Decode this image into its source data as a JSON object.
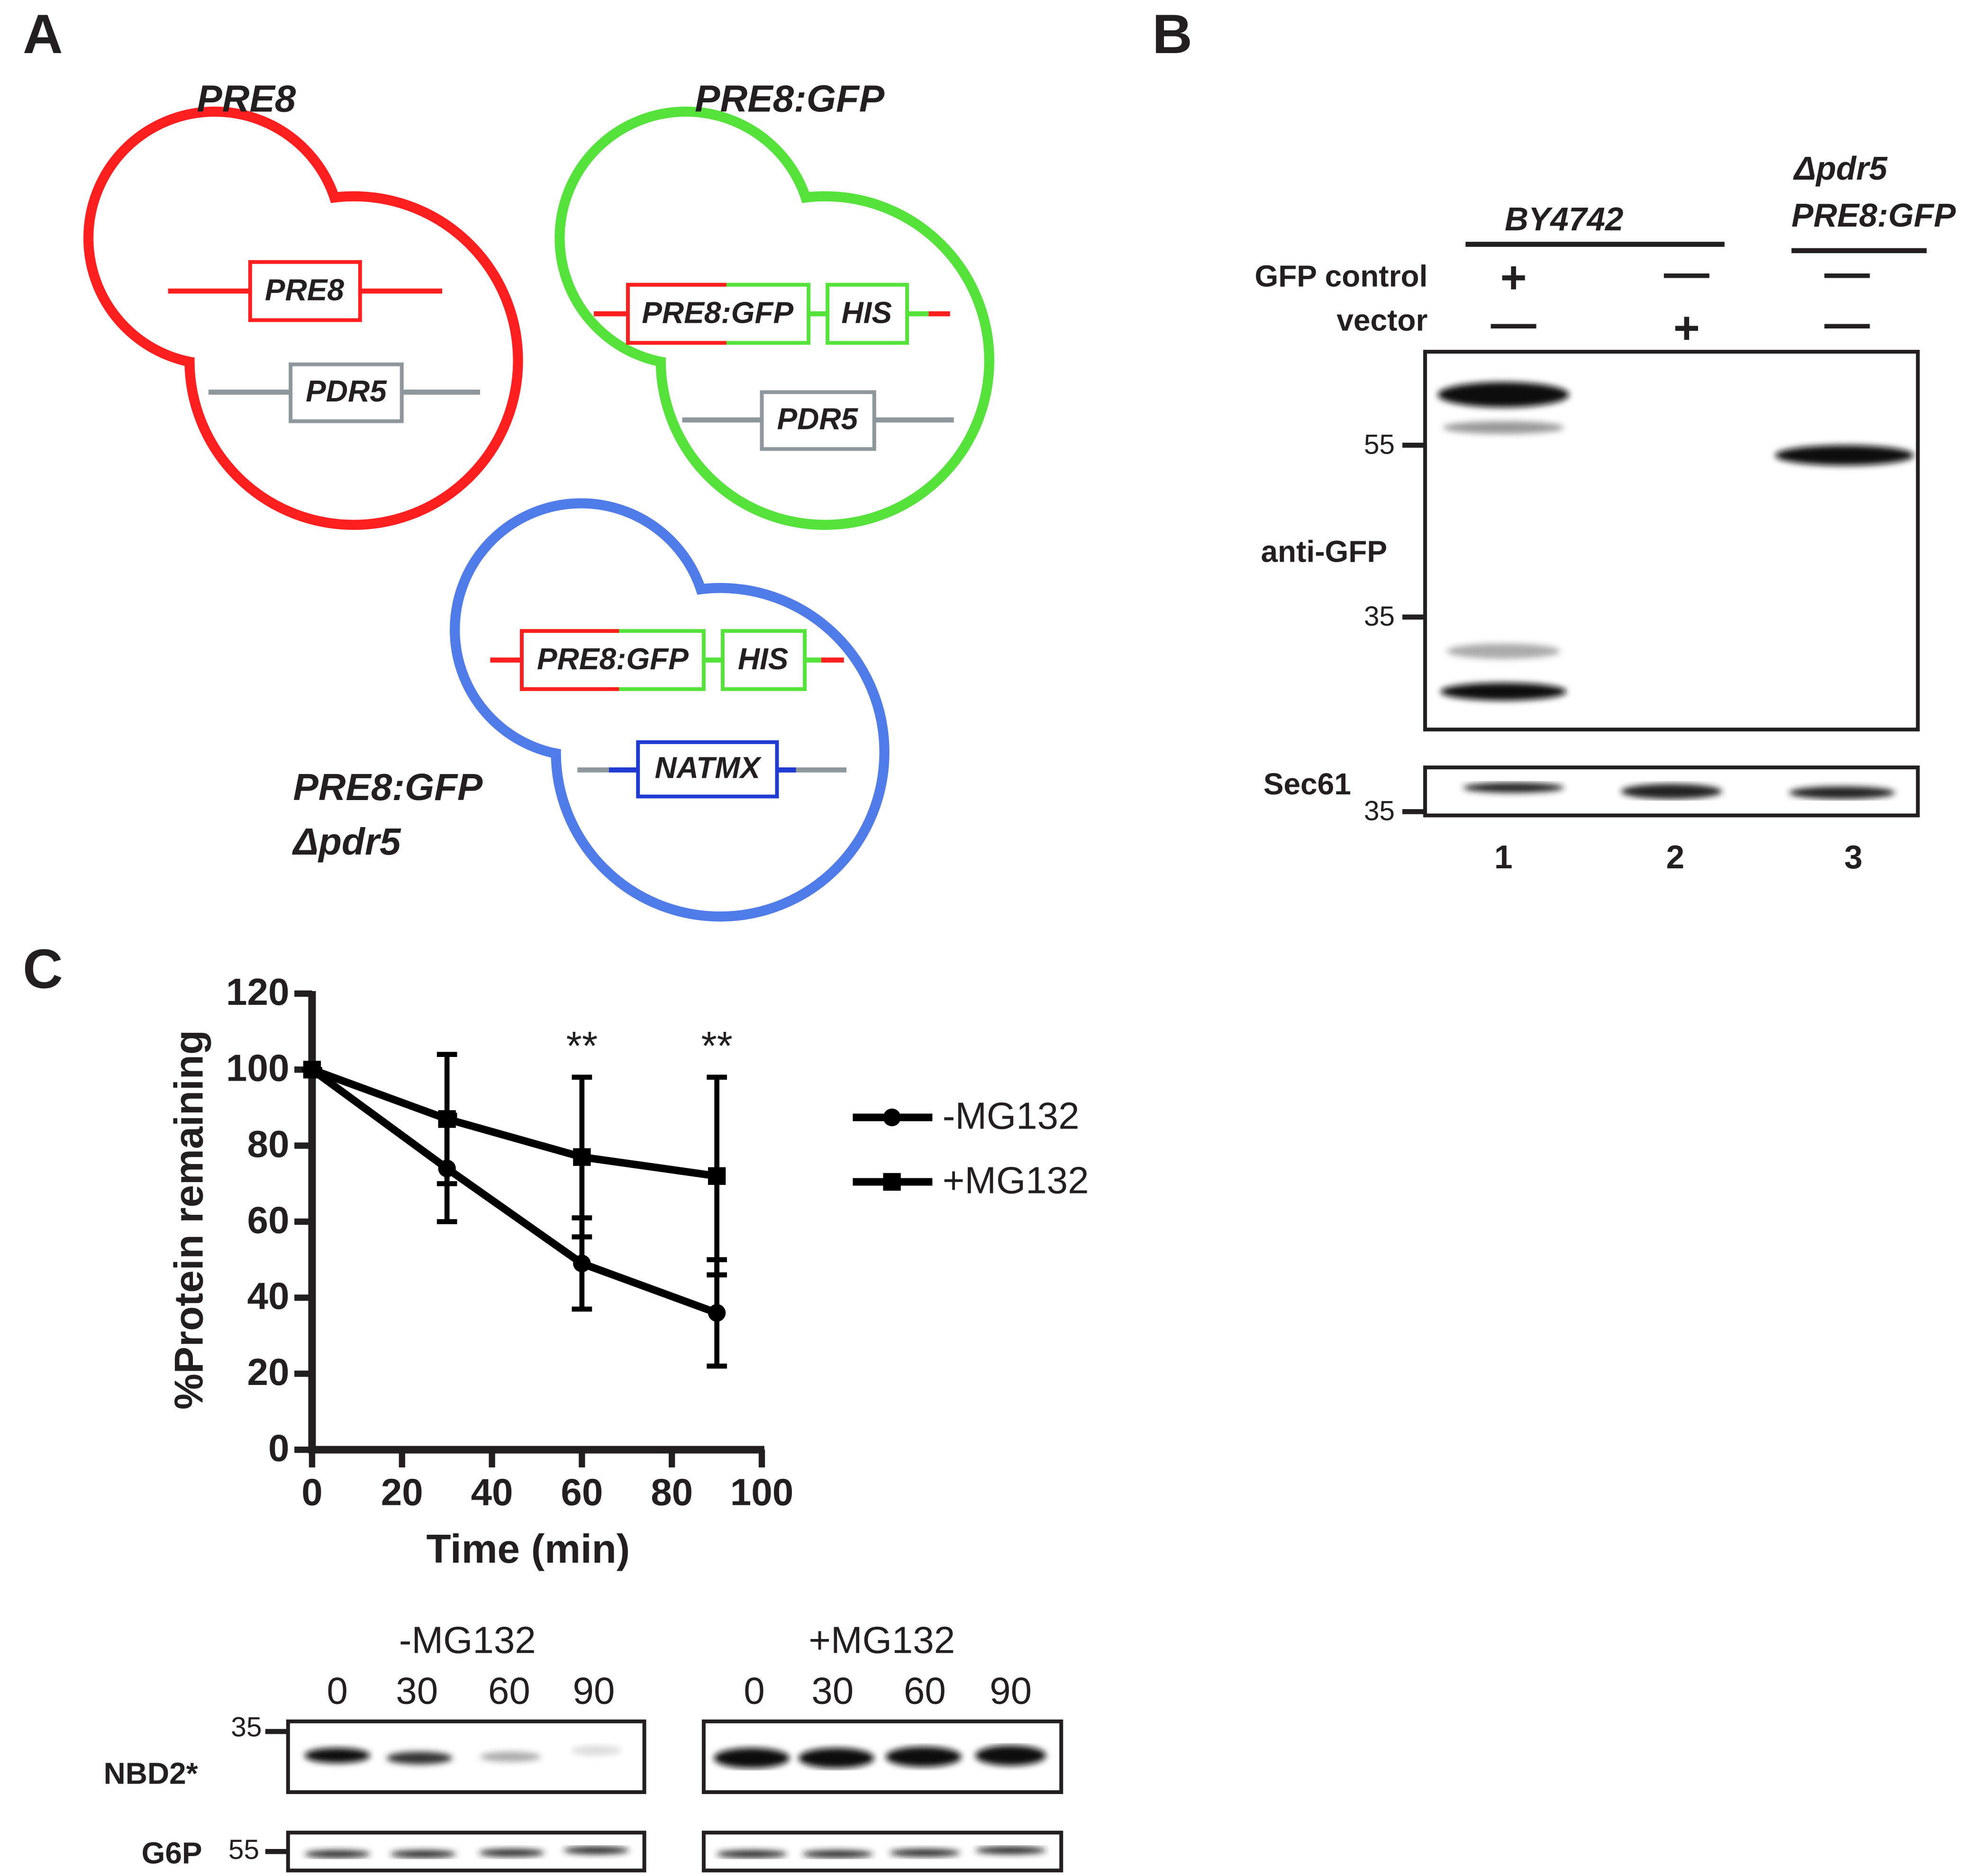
{
  "panel_labels": [
    "A",
    "B",
    "C"
  ],
  "panel_a": {
    "cells": [
      {
        "title": [
          "PRE8"
        ],
        "genes": [
          "PRE8",
          "PDR5"
        ]
      },
      {
        "title": [
          "PRE8:GFP"
        ],
        "genes": [
          "PRE8:GFP",
          "HIS",
          "PDR5"
        ]
      },
      {
        "title": [
          "PRE8:GFP",
          "Δpdr5"
        ],
        "genes": [
          "PRE8:GFP",
          "HIS",
          "NATMX"
        ]
      }
    ]
  },
  "panel_b": {
    "strain_1": "BY4742",
    "strain_2": [
      "Δpdr5",
      "PRE8:GFP"
    ],
    "row_labels": [
      "GFP control",
      "vector"
    ],
    "signs": [
      [
        "+",
        "—",
        "—"
      ],
      [
        "—",
        "+",
        "—"
      ]
    ],
    "antibody": "anti-GFP",
    "loading": "Sec61",
    "markers": [
      55,
      35
    ],
    "loading_marker": 35,
    "lanes": [
      "1",
      "2",
      "3"
    ]
  },
  "chart_data": {
    "type": "line",
    "x_label": "Time (min)",
    "y_label": "%Protein remaining",
    "x": [
      0,
      30,
      60,
      90
    ],
    "series": [
      {
        "name": "-MG132",
        "color": "#000000",
        "marker": "circle",
        "values": [
          100,
          74,
          49,
          36
        ],
        "errors": [
          0,
          14,
          12,
          14
        ]
      },
      {
        "name": "+MG132",
        "color": "#000000",
        "marker": "square",
        "values": [
          100,
          87,
          77,
          72
        ],
        "errors": [
          0,
          17,
          21,
          26
        ]
      }
    ],
    "annotations": [
      {
        "text": "**",
        "x": 60
      },
      {
        "text": "**",
        "x": 90
      }
    ],
    "xlim": [
      0,
      100
    ],
    "xticks": [
      0,
      20,
      40,
      60,
      80,
      100
    ],
    "ylim": [
      0,
      120
    ],
    "yticks": [
      0,
      20,
      40,
      60,
      80,
      100,
      120
    ],
    "legend": "right",
    "grid": false
  },
  "panel_c_blots": {
    "groups": [
      {
        "title": "-MG132",
        "times": [
          "0",
          "30",
          "60",
          "90"
        ]
      },
      {
        "title": "+MG132",
        "times": [
          "0",
          "30",
          "60",
          "90"
        ]
      }
    ],
    "rows": [
      "NBD2*",
      "G6P"
    ],
    "markers": [
      35,
      55
    ]
  }
}
